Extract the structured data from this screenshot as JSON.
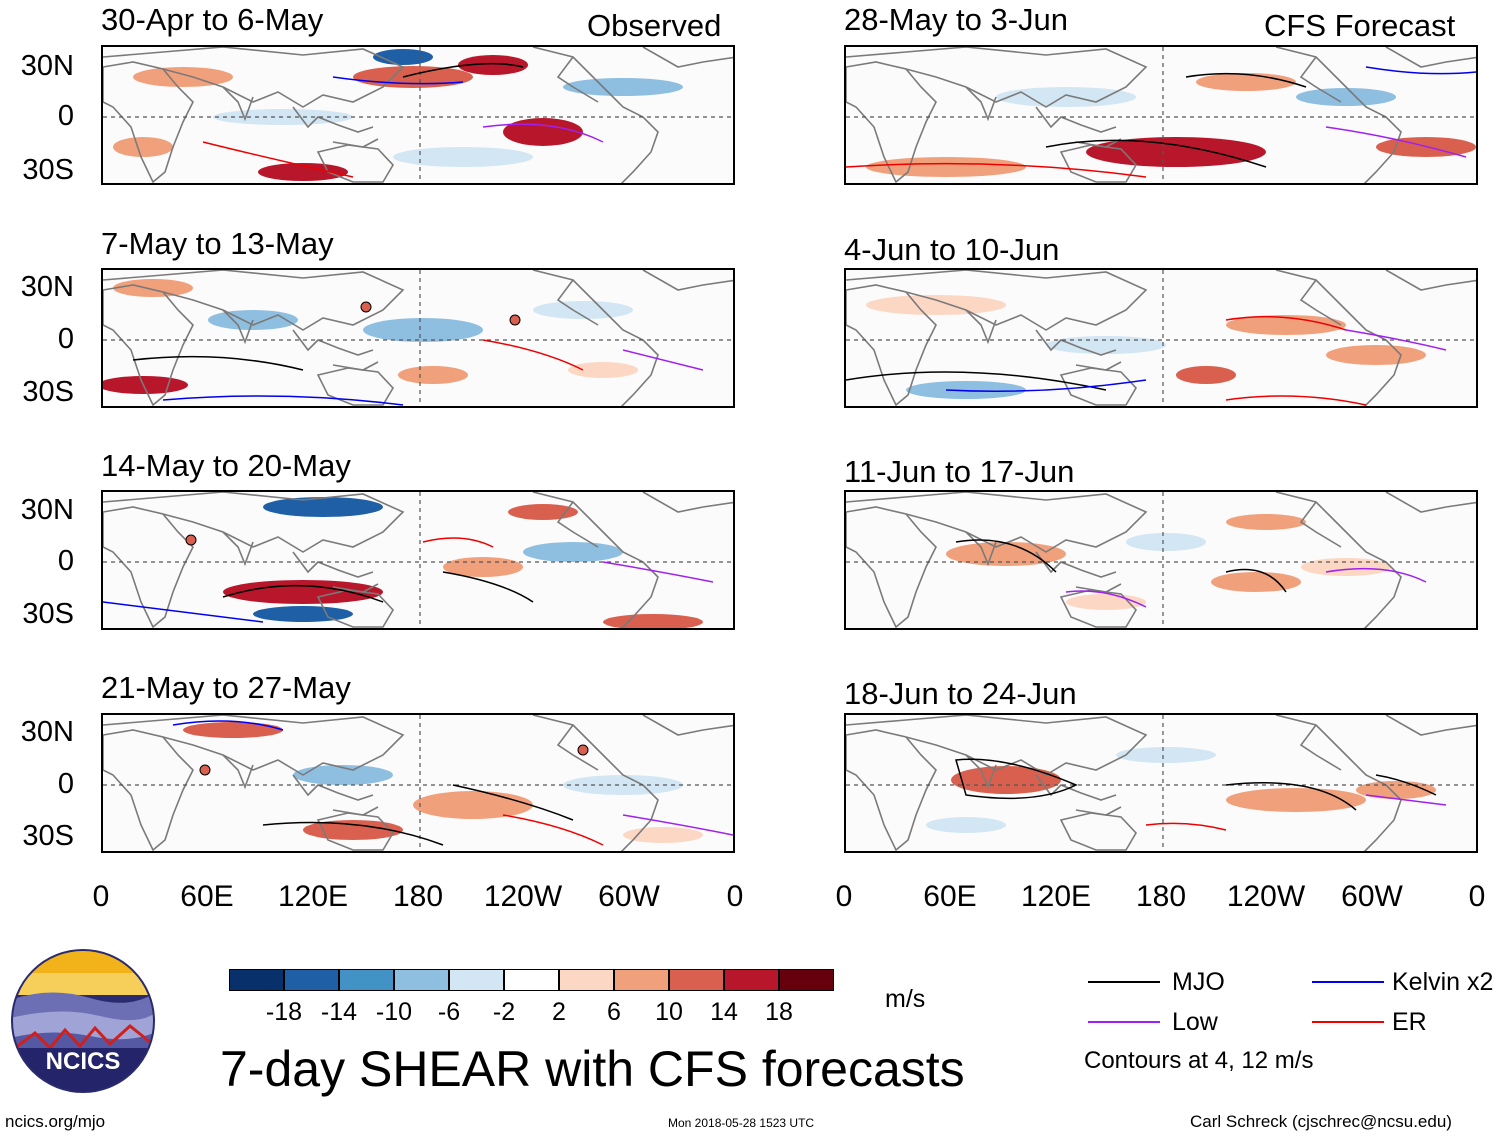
{
  "observed_label": "Observed",
  "forecast_label": "CFS Forecast",
  "panels_left": [
    {
      "title": "30-Apr to 6-May"
    },
    {
      "title": "7-May to 13-May"
    },
    {
      "title": "14-May to 20-May"
    },
    {
      "title": "21-May to 27-May"
    }
  ],
  "panels_right": [
    {
      "title": "28-May to 3-Jun"
    },
    {
      "title": "4-Jun to 10-Jun"
    },
    {
      "title": "11-Jun to 17-Jun"
    },
    {
      "title": "18-Jun to 24-Jun"
    }
  ],
  "y_ticks": [
    "30N",
    "0",
    "30S"
  ],
  "x_ticks": [
    "0",
    "60E",
    "120E",
    "180",
    "120W",
    "60W",
    "0"
  ],
  "colorbar": {
    "colors": [
      "#08306b",
      "#1f5fa6",
      "#4292c6",
      "#8fbfe0",
      "#d3e6f3",
      "#ffffff",
      "#fbd7c4",
      "#f1a07c",
      "#d9604e",
      "#b8172b",
      "#67000d"
    ],
    "labels": [
      "-18",
      "-14",
      "-10",
      "-6",
      "-2",
      "2",
      "6",
      "10",
      "14",
      "18"
    ],
    "units": "m/s"
  },
  "legend": {
    "items": [
      {
        "label": "MJO",
        "color": "#000000"
      },
      {
        "label": "Kelvin x2",
        "color": "#0000ee"
      },
      {
        "label": "Low",
        "color": "#a020f0"
      },
      {
        "label": "ER",
        "color": "#ee0000"
      }
    ],
    "note": "Contours at 4, 12 m/s"
  },
  "main_title": "7-day SHEAR with CFS forecasts",
  "logo_text": "NCICS",
  "footer": {
    "url": "ncics.org/mjo",
    "timestamp": "Mon 2018-05-28 1523 UTC",
    "author": "Carl Schreck (cjschrec@ncsu.edu)"
  }
}
